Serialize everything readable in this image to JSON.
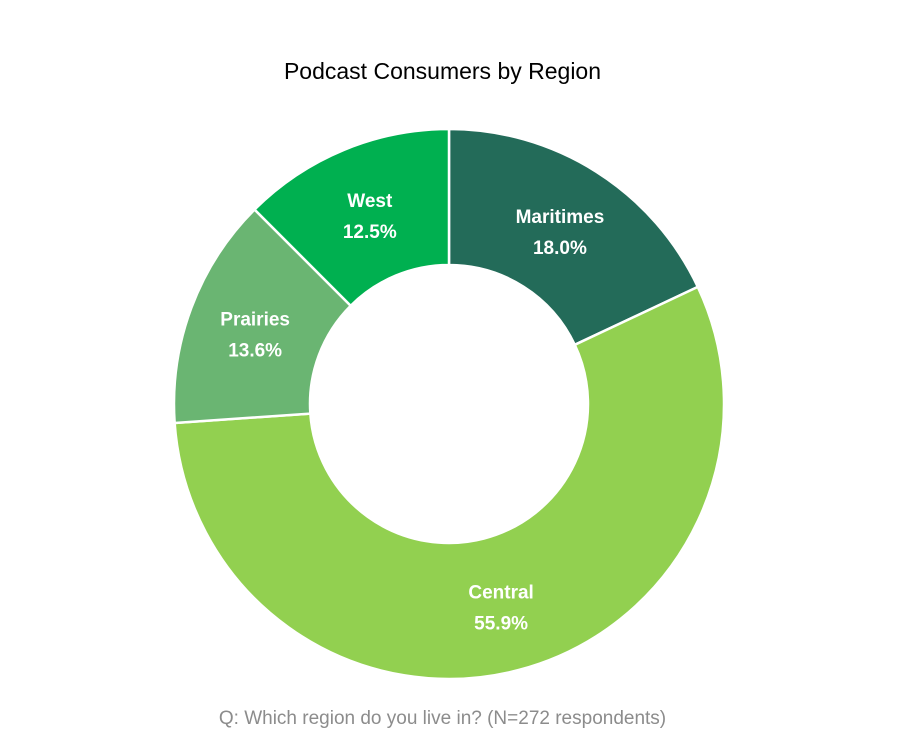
{
  "chart_data": {
    "type": "pie",
    "title": "Podcast Consumers by Region",
    "caption": "Q: Which region do you live in? (N=272 respondents)",
    "slices": [
      {
        "label": "Maritimes",
        "value": 18.0,
        "value_label": "18.0%",
        "color": "#236b59"
      },
      {
        "label": "Central",
        "value": 55.9,
        "value_label": "55.9%",
        "color": "#92d050"
      },
      {
        "label": "Prairies",
        "value": 13.6,
        "value_label": "13.6%",
        "color": "#6ab572"
      },
      {
        "label": "West",
        "value": 12.5,
        "value_label": "12.5%",
        "color": "#00b050"
      }
    ],
    "donut": true,
    "legend": "none"
  }
}
